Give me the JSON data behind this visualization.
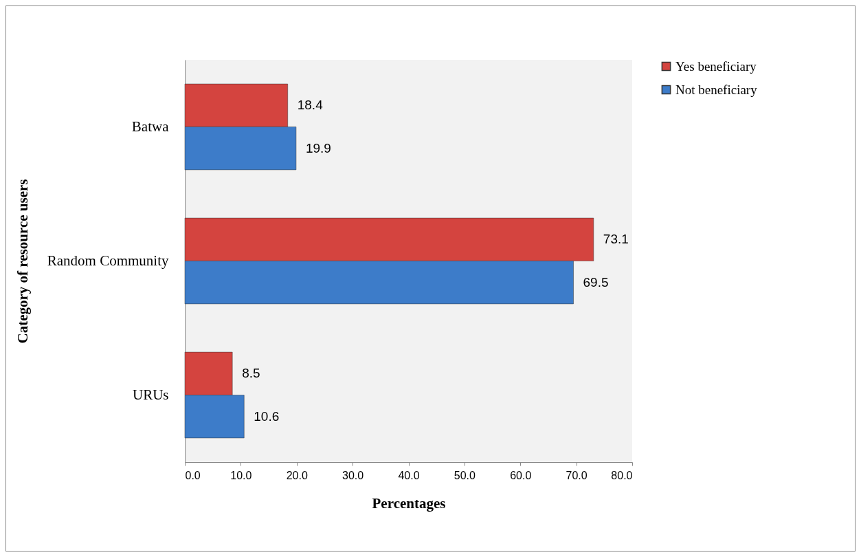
{
  "chart_data": {
    "type": "bar",
    "orientation": "horizontal",
    "xlabel": "Percentages",
    "ylabel": "Category of resource users",
    "categories": [
      "Batwa",
      "Random Community",
      "URUs"
    ],
    "series": [
      {
        "name": "Yes beneficiary",
        "color": "#d4443f",
        "values": [
          18.4,
          73.1,
          8.5
        ]
      },
      {
        "name": "Not beneficiary",
        "color": "#3d7cc9",
        "values": [
          19.9,
          69.5,
          10.6
        ]
      }
    ],
    "xlim": [
      0,
      80
    ],
    "xticks": [
      {
        "value": 0,
        "label": "0.0"
      },
      {
        "value": 10,
        "label": "10.0"
      },
      {
        "value": 20,
        "label": "20.0"
      },
      {
        "value": 30,
        "label": "30.0"
      },
      {
        "value": 40,
        "label": "40.0"
      },
      {
        "value": 50,
        "label": "50.0"
      },
      {
        "value": 60,
        "label": "60.0"
      },
      {
        "value": 70,
        "label": "70.0"
      },
      {
        "value": 80,
        "label": "80.0"
      }
    ],
    "data_labels": true,
    "legend": "right",
    "grid": false
  }
}
